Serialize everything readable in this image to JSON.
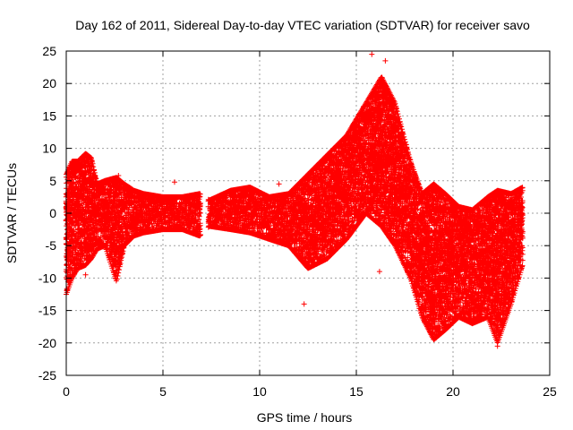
{
  "chart_data": {
    "type": "scatter",
    "title": "Day 162 of 2011, Sidereal Day-to-day VTEC variation (SDTVAR) for receiver savo",
    "xlabel": "GPS time / hours",
    "ylabel": "SDTVAR / TECUs",
    "xlim": [
      0,
      25
    ],
    "ylim": [
      -25,
      25
    ],
    "xticks": [
      0,
      5,
      10,
      15,
      20,
      25
    ],
    "yticks": [
      -25,
      -20,
      -15,
      -10,
      -5,
      0,
      5,
      10,
      15,
      20,
      25
    ],
    "grid": true,
    "marker": "+",
    "color": "#ff0000",
    "series": [
      {
        "name": "SDTVAR",
        "envelope": [
          {
            "x": 0.0,
            "min": -12.5,
            "max": 6.0
          },
          {
            "x": 0.3,
            "min": -10.0,
            "max": 8.0
          },
          {
            "x": 0.6,
            "min": -8.5,
            "max": 8.0
          },
          {
            "x": 1.0,
            "min": -8.0,
            "max": 9.2
          },
          {
            "x": 1.3,
            "min": -7.0,
            "max": 8.5
          },
          {
            "x": 1.6,
            "min": -5.5,
            "max": 4.5
          },
          {
            "x": 2.0,
            "min": -5.0,
            "max": 5.0
          },
          {
            "x": 2.6,
            "min": -10.5,
            "max": 5.5
          },
          {
            "x": 3.0,
            "min": -5.0,
            "max": 4.5
          },
          {
            "x": 3.5,
            "min": -3.5,
            "max": 3.5
          },
          {
            "x": 4.0,
            "min": -3.0,
            "max": 3.0
          },
          {
            "x": 5.0,
            "min": -2.5,
            "max": 2.5
          },
          {
            "x": 6.0,
            "min": -2.5,
            "max": 2.5
          },
          {
            "x": 6.9,
            "min": -3.5,
            "max": 3.0
          },
          {
            "x": 7.4,
            "min": -2.0,
            "max": 2.0
          },
          {
            "x": 8.5,
            "min": -2.5,
            "max": 3.5
          },
          {
            "x": 9.5,
            "min": -3.0,
            "max": 4.0
          },
          {
            "x": 10.5,
            "min": -4.0,
            "max": 2.5
          },
          {
            "x": 11.5,
            "min": -5.0,
            "max": 3.0
          },
          {
            "x": 12.5,
            "min": -8.5,
            "max": 6.0
          },
          {
            "x": 13.5,
            "min": -7.0,
            "max": 9.0
          },
          {
            "x": 14.5,
            "min": -4.0,
            "max": 12.0
          },
          {
            "x": 15.5,
            "min": 0.0,
            "max": 17.0
          },
          {
            "x": 16.3,
            "min": -2.0,
            "max": 21.0
          },
          {
            "x": 17.0,
            "min": -5.0,
            "max": 17.0
          },
          {
            "x": 17.8,
            "min": -10.0,
            "max": 8.0
          },
          {
            "x": 18.4,
            "min": -16.0,
            "max": 3.0
          },
          {
            "x": 19.0,
            "min": -19.5,
            "max": 4.5
          },
          {
            "x": 19.6,
            "min": -18.0,
            "max": 3.0
          },
          {
            "x": 20.3,
            "min": -16.0,
            "max": 1.0
          },
          {
            "x": 21.0,
            "min": -17.0,
            "max": 0.5
          },
          {
            "x": 21.8,
            "min": -16.0,
            "max": 2.5
          },
          {
            "x": 22.3,
            "min": -20.0,
            "max": 3.5
          },
          {
            "x": 23.0,
            "min": -14.0,
            "max": 3.0
          },
          {
            "x": 23.6,
            "min": -8.0,
            "max": 4.0
          }
        ],
        "gaps": [
          [
            6.95,
            7.35
          ]
        ],
        "outliers": [
          {
            "x": 15.8,
            "y": 24.5
          },
          {
            "x": 16.5,
            "y": 23.5
          },
          {
            "x": 12.3,
            "y": -14.0
          },
          {
            "x": 1.0,
            "y": -9.5
          },
          {
            "x": 16.2,
            "y": -9.0
          },
          {
            "x": 5.6,
            "y": 4.8
          },
          {
            "x": 22.3,
            "y": -20.5
          },
          {
            "x": 11.0,
            "y": 4.5
          },
          {
            "x": 2.7,
            "y": 5.8
          }
        ]
      }
    ]
  }
}
